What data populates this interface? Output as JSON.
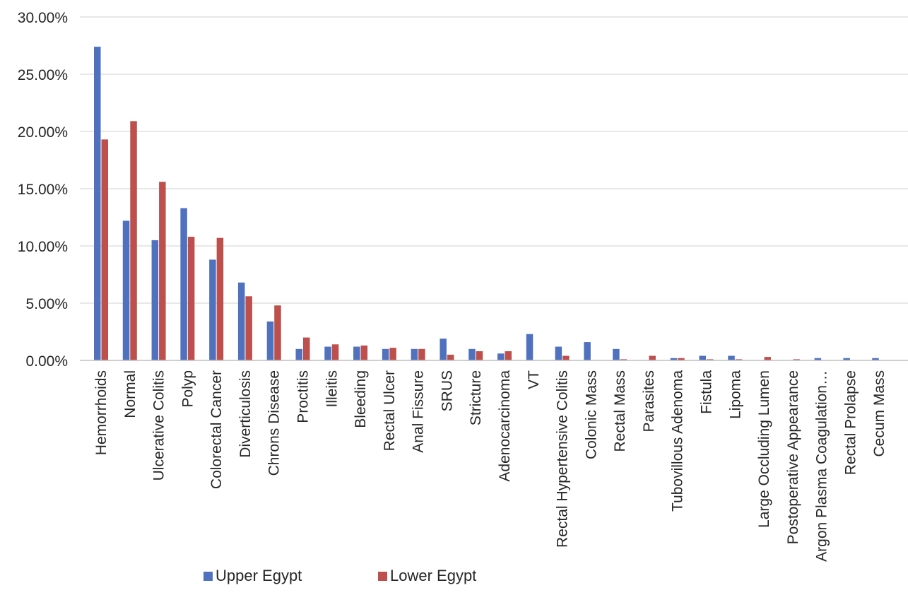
{
  "chart_data": {
    "type": "bar",
    "categories": [
      "Hemorrhoids",
      "Normal",
      "Ulcerative Colitis",
      "Polyp",
      "Colorectal Cancer",
      "Diverticulosis",
      "Chrons Disease",
      "Proctitis",
      "Illeitis",
      "Bleeding",
      "Rectal Ulcer",
      "Anal Fissure",
      "SRUS",
      "Stricture",
      "Adenocarcinoma",
      "VT",
      "Rectal Hypertensive Colitis",
      "Colonic Mass",
      "Rectal Mass",
      "Parasites",
      "Tubovillous Adenoma",
      "Fistula",
      "Lipoma",
      "Large Occluding Lumen",
      "Postoperative Appearance",
      "Argon Plasma Coagulation…",
      "Rectal Prolapse",
      "Cecum Mass"
    ],
    "series": [
      {
        "name": "Upper Egypt",
        "color": "#4f71be",
        "values": [
          27.4,
          12.2,
          10.5,
          13.3,
          8.8,
          6.8,
          3.4,
          1.0,
          1.2,
          1.2,
          1.0,
          1.0,
          1.9,
          1.0,
          0.6,
          2.3,
          1.2,
          1.6,
          1.0,
          0.0,
          0.2,
          0.4,
          0.4,
          0.0,
          0.0,
          0.2,
          0.2,
          0.2
        ]
      },
      {
        "name": "Lower Egypt",
        "color": "#bd4f4c",
        "values": [
          19.3,
          20.9,
          15.6,
          10.8,
          10.7,
          5.6,
          4.8,
          2.0,
          1.4,
          1.3,
          1.1,
          1.0,
          0.5,
          0.8,
          0.8,
          0.0,
          0.4,
          0.0,
          0.1,
          0.4,
          0.2,
          0.1,
          0.1,
          0.3,
          0.1,
          0.0,
          0.0,
          0.0
        ]
      }
    ],
    "y_ticks": [
      "0.00%",
      "5.00%",
      "10.00%",
      "15.00%",
      "20.00%",
      "25.00%",
      "30.00%"
    ],
    "ylim": [
      0,
      30
    ],
    "grid": true,
    "legend": "bottom"
  },
  "legend": {
    "upper": {
      "label": "Upper Egypt",
      "color": "#4f71be"
    },
    "lower": {
      "label": "Lower Egypt",
      "color": "#bd4f4c"
    }
  }
}
